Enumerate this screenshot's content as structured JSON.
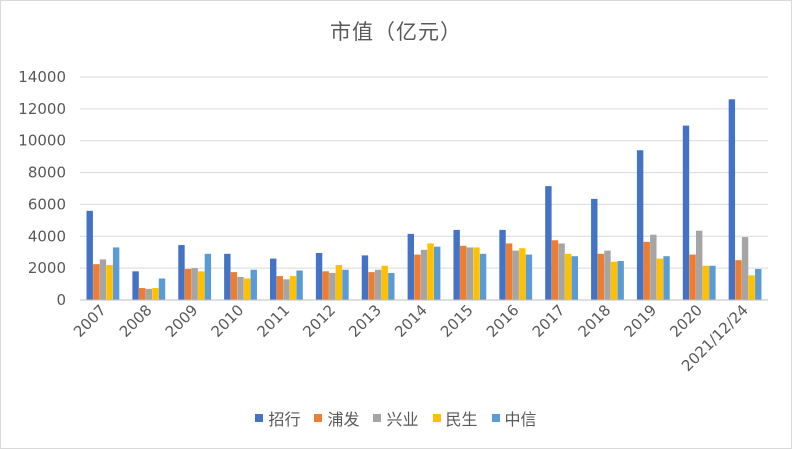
{
  "chart_data": {
    "type": "bar",
    "title": "市值（亿元）",
    "xlabel": "",
    "ylabel": "",
    "ylim": [
      0,
      14000
    ],
    "yticks": [
      0,
      2000,
      4000,
      6000,
      8000,
      10000,
      12000,
      14000
    ],
    "grid": true,
    "legend": "bottom",
    "categories": [
      "2007",
      "2008",
      "2009",
      "2010",
      "2011",
      "2012",
      "2013",
      "2014",
      "2015",
      "2016",
      "2017",
      "2018",
      "2019",
      "2020",
      "2021/12/24"
    ],
    "series": [
      {
        "name": "招行",
        "color": "#4472C4",
        "values": [
          5600,
          1800,
          3450,
          2900,
          2600,
          2950,
          2800,
          4150,
          4400,
          4400,
          7150,
          6350,
          9400,
          10950,
          12600
        ]
      },
      {
        "name": "浦发",
        "color": "#ED7D31",
        "values": [
          2250,
          750,
          1950,
          1750,
          1500,
          1800,
          1750,
          2850,
          3400,
          3550,
          3750,
          2900,
          3650,
          2850,
          2500
        ]
      },
      {
        "name": "兴业",
        "color": "#A5A5A5",
        "values": [
          2550,
          700,
          2000,
          1450,
          1300,
          1700,
          1900,
          3150,
          3300,
          3100,
          3550,
          3100,
          4100,
          4350,
          3950
        ]
      },
      {
        "name": "民生",
        "color": "#FFC000",
        "values": [
          2200,
          750,
          1800,
          1350,
          1500,
          2200,
          2150,
          3550,
          3300,
          3250,
          2900,
          2400,
          2600,
          2150,
          1550
        ]
      },
      {
        "name": "中信",
        "color": "#5B9BD5",
        "values": [
          3300,
          1350,
          2900,
          1900,
          1850,
          1900,
          1700,
          3350,
          2900,
          2850,
          2750,
          2450,
          2750,
          2150,
          1950
        ]
      }
    ]
  }
}
